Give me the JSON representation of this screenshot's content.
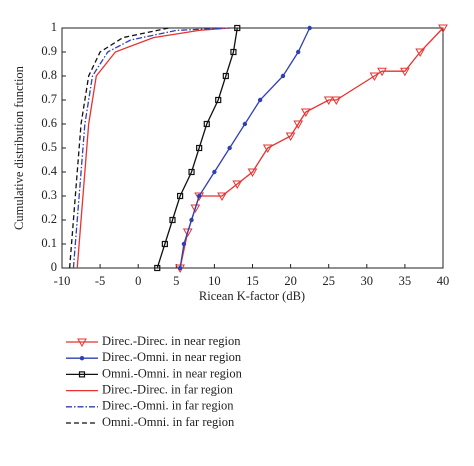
{
  "chart_data": {
    "type": "line",
    "xlabel": "Ricean K-factor (dB)",
    "ylabel": "Cumulative distribution function",
    "xlim": [
      -10,
      40
    ],
    "xticks": [
      -10,
      -5,
      0,
      5,
      10,
      15,
      20,
      25,
      30,
      35,
      40
    ],
    "ylim": [
      0,
      1
    ],
    "yticks": [
      0,
      0.1,
      0.2,
      0.3,
      0.4,
      0.5,
      0.6,
      0.7,
      0.8,
      0.9,
      1
    ],
    "series": [
      {
        "name": "Direc.-Direc. in near region",
        "color": "#e8322f",
        "dash": "solid",
        "marker": "triangle",
        "x": [
          5.5,
          6.5,
          7.5,
          8,
          11,
          13,
          15,
          17,
          20,
          21,
          22,
          25,
          26,
          31,
          32,
          35,
          37,
          40
        ],
        "values": [
          0,
          0.15,
          0.25,
          0.3,
          0.3,
          0.35,
          0.4,
          0.5,
          0.55,
          0.6,
          0.65,
          0.7,
          0.7,
          0.8,
          0.82,
          0.82,
          0.9,
          1
        ]
      },
      {
        "name": "Direc.-Omni. in near region",
        "color": "#2f3fb5",
        "dash": "solid",
        "marker": "circle",
        "x": [
          5.5,
          6,
          7,
          8,
          10,
          12,
          14,
          16,
          19,
          21,
          22.5
        ],
        "values": [
          0,
          0.1,
          0.2,
          0.3,
          0.4,
          0.5,
          0.6,
          0.7,
          0.8,
          0.9,
          1
        ]
      },
      {
        "name": "Omni.-Omni. in near region",
        "color": "#111111",
        "dash": "solid",
        "marker": "square",
        "x": [
          2.5,
          3.5,
          4.5,
          5.5,
          7,
          8,
          9,
          10.5,
          11.5,
          12.5,
          13
        ],
        "values": [
          0,
          0.1,
          0.2,
          0.3,
          0.4,
          0.5,
          0.6,
          0.7,
          0.8,
          0.9,
          1
        ]
      },
      {
        "name": "Direc.-Direc. in far region",
        "color": "#e8322f",
        "dash": "solid",
        "marker": "none",
        "x": [
          -8,
          -7.5,
          -7,
          -6.5,
          -5.5,
          -3,
          2,
          8,
          12
        ],
        "values": [
          0,
          0.2,
          0.4,
          0.6,
          0.8,
          0.9,
          0.96,
          0.99,
          1
        ]
      },
      {
        "name": "Direc.-Omni. in far region",
        "color": "#2f3fb5",
        "dash": "dashdot",
        "marker": "none",
        "x": [
          -8.5,
          -8,
          -7.5,
          -7,
          -6,
          -4,
          -1,
          5,
          12
        ],
        "values": [
          0,
          0.2,
          0.4,
          0.6,
          0.8,
          0.9,
          0.95,
          0.99,
          1
        ]
      },
      {
        "name": "Omni.-Omni. in far region",
        "color": "#111111",
        "dash": "dashed",
        "marker": "none",
        "x": [
          -9,
          -8.5,
          -8,
          -7.5,
          -6.5,
          -5,
          -2,
          4
        ],
        "values": [
          0,
          0.2,
          0.4,
          0.6,
          0.8,
          0.9,
          0.96,
          1
        ]
      }
    ]
  }
}
